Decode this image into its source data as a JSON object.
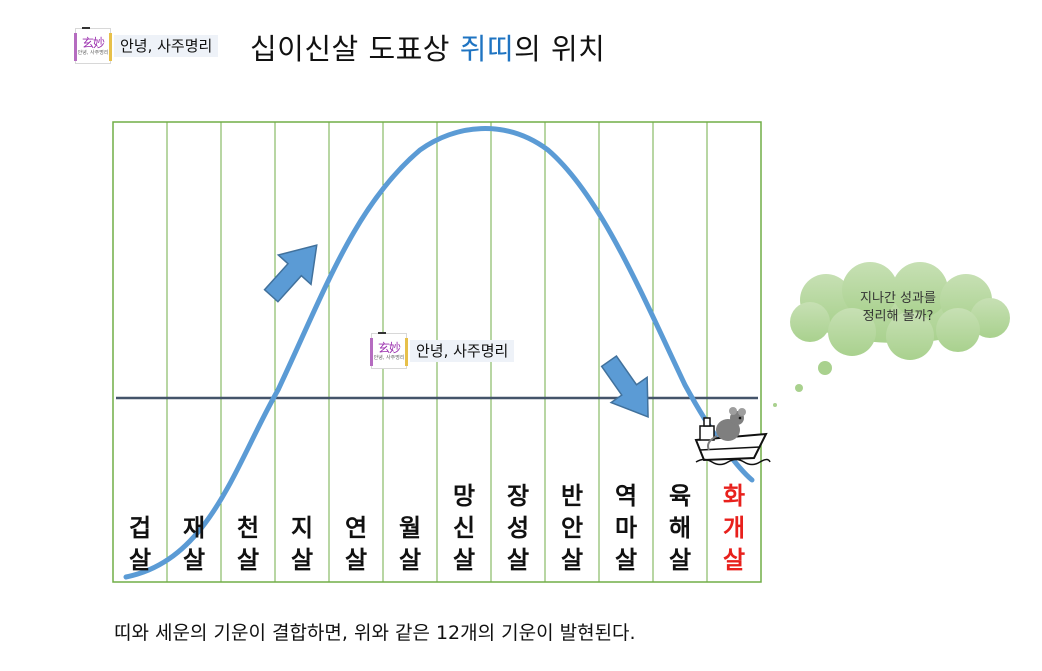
{
  "header": {
    "logo_glyph": "玄妙",
    "logo_subtext": "안녕, 사주명리",
    "tag_text": "안녕, 사주명리",
    "title_part1": "십이신살 도표상 ",
    "title_highlight": "쥐띠",
    "title_part2": "의 위치"
  },
  "watermark": {
    "logo_glyph": "玄妙",
    "logo_subtext": "안녕, 사주명리",
    "tag_text": "안녕, 사주명리"
  },
  "columns": [
    {
      "line1": "",
      "line2": "겁",
      "line3": "살",
      "highlight": false
    },
    {
      "line1": "",
      "line2": "재",
      "line3": "살",
      "highlight": false
    },
    {
      "line1": "",
      "line2": "천",
      "line3": "살",
      "highlight": false
    },
    {
      "line1": "",
      "line2": "지",
      "line3": "살",
      "highlight": false
    },
    {
      "line1": "",
      "line2": "연",
      "line3": "살",
      "highlight": false
    },
    {
      "line1": "",
      "line2": "월",
      "line3": "살",
      "highlight": false
    },
    {
      "line1": "망",
      "line2": "신",
      "line3": "살",
      "highlight": false
    },
    {
      "line1": "장",
      "line2": "성",
      "line3": "살",
      "highlight": false
    },
    {
      "line1": "반",
      "line2": "안",
      "line3": "살",
      "highlight": false
    },
    {
      "line1": "역",
      "line2": "마",
      "line3": "살",
      "highlight": false
    },
    {
      "line1": "육",
      "line2": "해",
      "line3": "살",
      "highlight": false
    },
    {
      "line1": "화",
      "line2": "개",
      "line3": "살",
      "highlight": true
    }
  ],
  "bubble": {
    "line1": "지나간 성과를",
    "line2": "정리해 볼까?"
  },
  "caption": "띠와 세운의 기운이 결합하면, 위와 같은 12개의 기운이 발현된다.",
  "icons": [
    "up-arrow-icon",
    "down-arrow-icon",
    "mouse-on-ship-icon",
    "thought-bubble-icon",
    "logo-icon"
  ],
  "colors": {
    "curve": "#5b9bd5",
    "grid": "#70ad47",
    "midline": "#44546a",
    "arrow": "#5b9bd5",
    "highlight_text": "#e8201c",
    "title_highlight": "#1f74c2",
    "bubble": "#a9d18e"
  }
}
